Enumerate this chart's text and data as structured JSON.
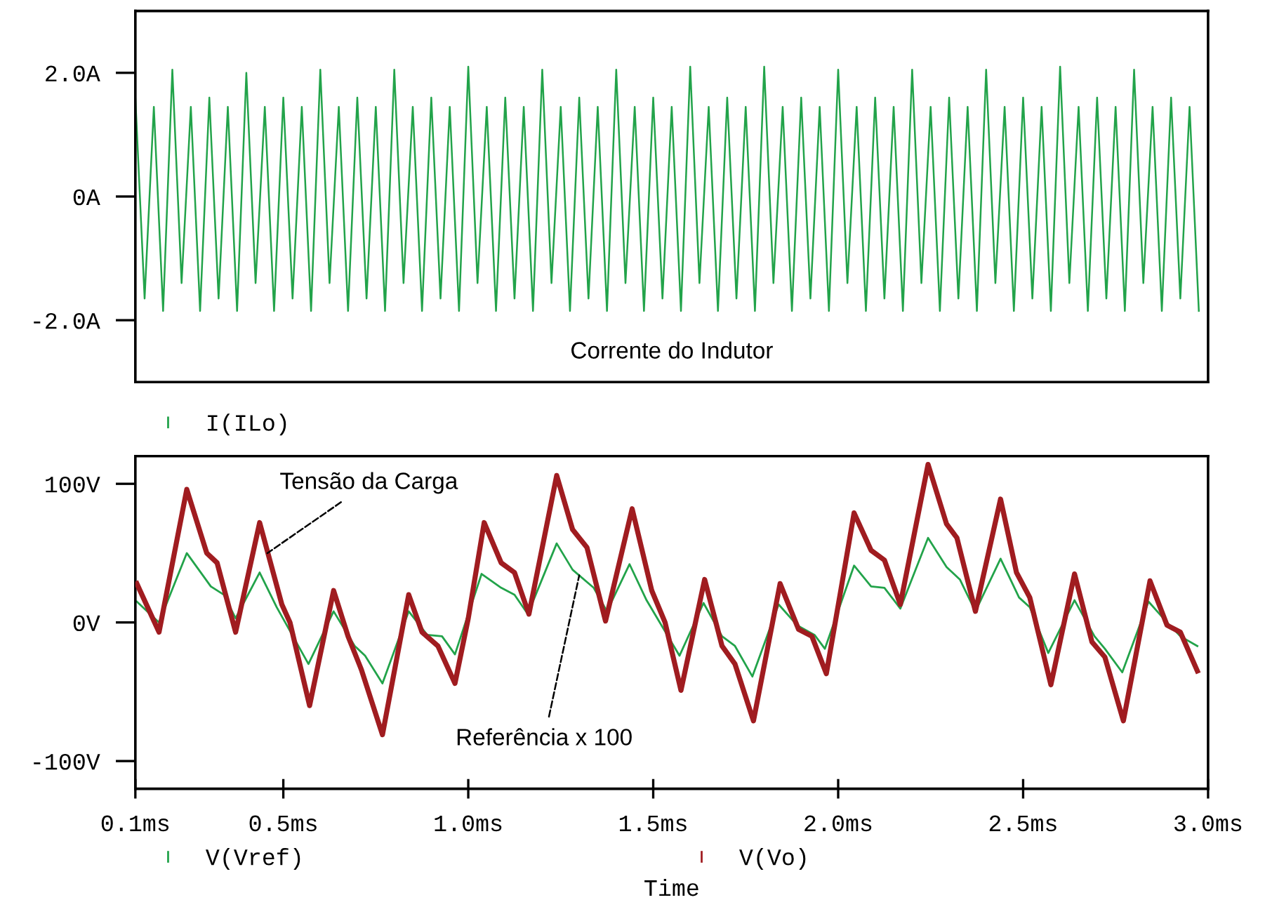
{
  "chart_data": [
    {
      "type": "line",
      "xlim": [
        0.1,
        3.0
      ],
      "ylim": [
        -3.0,
        3.0
      ],
      "yticks": [
        {
          "value": 2,
          "label": "2.0A"
        },
        {
          "value": 0,
          "label": "0A"
        },
        {
          "value": -2,
          "label": "-2.0A"
        }
      ],
      "tick_labels": "y",
      "grid": false,
      "legend": "bottom",
      "annotations": [
        "Corrente do Indutor"
      ],
      "series": [
        {
          "name": "I(ILo)",
          "color": "#22a34a",
          "x": [
            0.1,
            0.125,
            0.15,
            0.175,
            0.2,
            0.225,
            0.25,
            0.275,
            0.3,
            0.325,
            0.35,
            0.375,
            0.4,
            0.425,
            0.45,
            0.475,
            0.5,
            0.525,
            0.55,
            0.575,
            0.6,
            0.625,
            0.65,
            0.675,
            0.7,
            0.725,
            0.75,
            0.775,
            0.8,
            0.825,
            0.85,
            0.875,
            0.9,
            0.925,
            0.95,
            0.975,
            1.0,
            1.025,
            1.05,
            1.075,
            1.1,
            1.125,
            1.15,
            1.175,
            1.2,
            1.225,
            1.25,
            1.275,
            1.3,
            1.325,
            1.35,
            1.375,
            1.4,
            1.425,
            1.45,
            1.475,
            1.5,
            1.525,
            1.55,
            1.575,
            1.6,
            1.625,
            1.65,
            1.675,
            1.7,
            1.725,
            1.75,
            1.775,
            1.8,
            1.825,
            1.85,
            1.875,
            1.9,
            1.925,
            1.95,
            1.975,
            2.0,
            2.025,
            2.05,
            2.075,
            2.1,
            2.125,
            2.15,
            2.175,
            2.2,
            2.225,
            2.25,
            2.275,
            2.3,
            2.325,
            2.35,
            2.375,
            2.4,
            2.425,
            2.45,
            2.475,
            2.5,
            2.525,
            2.55,
            2.575,
            2.6,
            2.625,
            2.65,
            2.675,
            2.7,
            2.725,
            2.75,
            2.775,
            2.8,
            2.825,
            2.85,
            2.875,
            2.9,
            2.925,
            2.95,
            2.975
          ],
          "values": [
            1.6,
            -1.65,
            1.45,
            -1.85,
            2.05,
            -1.4,
            1.45,
            -1.85,
            1.6,
            -1.65,
            1.45,
            -1.85,
            2.0,
            -1.4,
            1.45,
            -1.85,
            1.6,
            -1.65,
            1.45,
            -1.85,
            2.05,
            -1.4,
            1.45,
            -1.85,
            1.6,
            -1.65,
            1.45,
            -1.85,
            2.05,
            -1.4,
            1.45,
            -1.85,
            1.6,
            -1.65,
            1.45,
            -1.85,
            2.1,
            -1.4,
            1.45,
            -1.85,
            1.6,
            -1.65,
            1.45,
            -1.85,
            2.05,
            -1.4,
            1.45,
            -1.85,
            1.6,
            -1.65,
            1.45,
            -1.85,
            2.05,
            -1.4,
            1.45,
            -1.85,
            1.6,
            -1.65,
            1.45,
            -1.85,
            2.1,
            -1.4,
            1.45,
            -1.85,
            1.6,
            -1.65,
            1.45,
            -1.85,
            2.1,
            -1.4,
            1.45,
            -1.85,
            1.6,
            -1.65,
            1.45,
            -1.85,
            2.05,
            -1.4,
            1.45,
            -1.85,
            1.6,
            -1.65,
            1.45,
            -1.85,
            2.05,
            -1.4,
            1.45,
            -1.85,
            1.6,
            -1.65,
            1.45,
            -1.85,
            2.05,
            -1.4,
            1.45,
            -1.85,
            1.6,
            -1.65,
            1.45,
            -1.85,
            2.1,
            -1.4,
            1.45,
            -1.85,
            1.6,
            -1.65,
            1.45,
            -1.85,
            2.05,
            -1.4,
            1.45,
            -1.85,
            1.6,
            -1.65,
            1.45,
            -1.85
          ]
        }
      ]
    },
    {
      "type": "line",
      "xlabel": "Time",
      "xlim": [
        0.1,
        3.0
      ],
      "ylim": [
        -120,
        120
      ],
      "xticks": [
        {
          "value": 0.1,
          "label": "0.1ms"
        },
        {
          "value": 0.5,
          "label": "0.5ms"
        },
        {
          "value": 1.0,
          "label": "1.0ms"
        },
        {
          "value": 1.5,
          "label": "1.5ms"
        },
        {
          "value": 2.0,
          "label": "2.0ms"
        },
        {
          "value": 2.5,
          "label": "2.5ms"
        },
        {
          "value": 3.0,
          "label": "3.0ms"
        }
      ],
      "yticks": [
        {
          "value": 100,
          "label": "100V"
        },
        {
          "value": 0,
          "label": "0V"
        },
        {
          "value": -100,
          "label": "-100V"
        }
      ],
      "grid": false,
      "legend": "bottom",
      "annotations": [
        {
          "text": "Tensão da Carga",
          "x": 0.457,
          "y": 50
        },
        {
          "text": "Referência x 100",
          "x": 1.3,
          "y": 34
        }
      ],
      "series": [
        {
          "name": "V(Vref)",
          "color": "#22a34a",
          "x": [
            0.104,
            0.164,
            0.239,
            0.304,
            0.339,
            0.371,
            0.436,
            0.482,
            0.568,
            0.636,
            0.693,
            0.721,
            0.768,
            0.839,
            0.889,
            0.929,
            0.964,
            1.036,
            1.089,
            1.125,
            1.161,
            1.239,
            1.282,
            1.339,
            1.375,
            1.436,
            1.482,
            1.571,
            1.636,
            1.686,
            1.721,
            1.768,
            1.839,
            1.889,
            1.936,
            1.964,
            2.043,
            2.089,
            2.125,
            2.168,
            2.243,
            2.293,
            2.329,
            2.371,
            2.439,
            2.489,
            2.518,
            2.568,
            2.639,
            2.693,
            2.721,
            2.768,
            2.839,
            2.889,
            2.925,
            2.971
          ],
          "values": [
            15,
            0,
            50,
            26,
            20,
            3,
            36,
            11,
            -30,
            8,
            -17,
            -24,
            -44,
            8,
            -9,
            -10,
            -23,
            35,
            25,
            20,
            6,
            57,
            38,
            25,
            8,
            42,
            16,
            -24,
            14,
            -10,
            -17,
            -39,
            13,
            -2,
            -9,
            -19,
            41,
            26,
            25,
            10,
            61,
            40,
            31,
            8,
            46,
            18,
            11,
            -22,
            16,
            -10,
            -19,
            -36,
            15,
            0,
            -10,
            -17
          ]
        },
        {
          "name": "V(Vo)",
          "color": "#a01c20",
          "x": [
            0.104,
            0.164,
            0.239,
            0.293,
            0.321,
            0.371,
            0.436,
            0.496,
            0.518,
            0.571,
            0.636,
            0.675,
            0.711,
            0.768,
            0.839,
            0.875,
            0.918,
            0.964,
            1.0,
            1.043,
            1.089,
            1.125,
            1.164,
            1.239,
            1.282,
            1.321,
            1.371,
            1.443,
            1.496,
            1.532,
            1.575,
            1.639,
            1.686,
            1.721,
            1.771,
            1.843,
            1.893,
            1.929,
            1.968,
            2.007,
            2.043,
            2.089,
            2.125,
            2.168,
            2.243,
            2.293,
            2.321,
            2.371,
            2.439,
            2.482,
            2.518,
            2.575,
            2.639,
            2.686,
            2.721,
            2.771,
            2.843,
            2.889,
            2.925,
            2.971
          ],
          "values": [
            28,
            -7,
            96,
            50,
            43,
            -7,
            72,
            13,
            0,
            -60,
            23,
            -10,
            -34,
            -81,
            20,
            -7,
            -17,
            -44,
            3,
            72,
            43,
            36,
            6,
            106,
            67,
            54,
            1,
            82,
            23,
            0,
            -49,
            31,
            -17,
            -30,
            -71,
            28,
            -5,
            -10,
            -37,
            23,
            79,
            52,
            45,
            13,
            114,
            71,
            61,
            8,
            89,
            36,
            18,
            -45,
            35,
            -14,
            -25,
            -71,
            30,
            -2,
            -7,
            -35
          ]
        }
      ]
    }
  ]
}
